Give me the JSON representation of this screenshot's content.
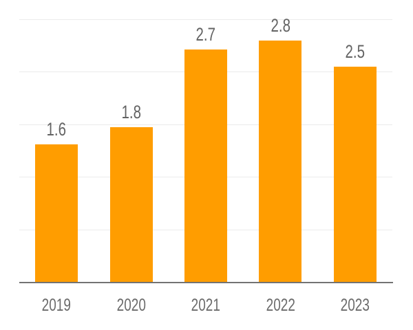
{
  "chart_data": {
    "type": "bar",
    "title": "",
    "xlabel": "",
    "ylabel": "",
    "categories": [
      "2019",
      "2020",
      "2021",
      "2022",
      "2023"
    ],
    "values": [
      1.6,
      1.8,
      2.7,
      2.8,
      2.5
    ],
    "value_labels": [
      "1.6",
      "1.8",
      "2.7",
      "2.8",
      "2.5"
    ],
    "ylim": [
      0,
      3.05
    ],
    "gridlines": 5,
    "grid": "horizontal",
    "legend": "none",
    "y_tick_labels_visible": false,
    "colors": {
      "bar": "#FF9D00",
      "value_label": "#636363",
      "x_label": "#6B6B6B",
      "gridline": "#EBEBEB",
      "axis_line": "#737373",
      "background": "#FFFFFF"
    }
  }
}
